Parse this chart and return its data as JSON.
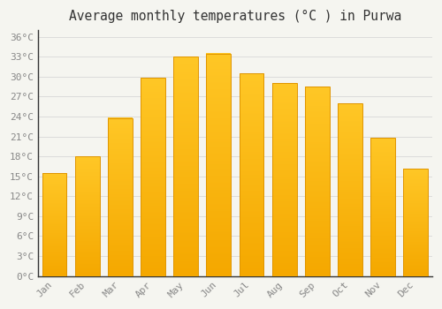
{
  "title": "Average monthly temperatures (°C ) in Purwa",
  "months": [
    "Jan",
    "Feb",
    "Mar",
    "Apr",
    "May",
    "Jun",
    "Jul",
    "Aug",
    "Sep",
    "Oct",
    "Nov",
    "Dec"
  ],
  "temperatures": [
    15.5,
    18.0,
    23.8,
    29.8,
    33.0,
    33.5,
    30.5,
    29.0,
    28.5,
    26.0,
    20.8,
    16.2
  ],
  "bar_color_top": "#FFC726",
  "bar_color_bottom": "#F5A800",
  "bar_edge_color": "#E09500",
  "background_color": "#f5f5f0",
  "grid_color": "#d8d8d8",
  "title_fontsize": 10.5,
  "tick_label_color": "#888888",
  "title_color": "#333333",
  "ylim": [
    0,
    37
  ],
  "yticks": [
    0,
    3,
    6,
    9,
    12,
    15,
    18,
    21,
    24,
    27,
    30,
    33,
    36
  ],
  "bar_width": 0.75
}
